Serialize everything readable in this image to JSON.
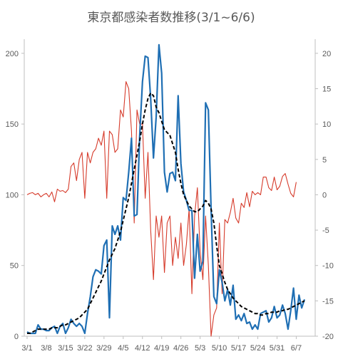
{
  "chart_data": {
    "type": "line",
    "title": "東京都感染者数推移(3/1~6/6)",
    "x_tick_labels": [
      "3/1",
      "3/8",
      "3/15",
      "3/22",
      "3/29",
      "4/5",
      "4/12",
      "4/19",
      "4/26",
      "5/3",
      "5/10",
      "5/17",
      "5/24",
      "5/31",
      "6/7"
    ],
    "y_left_range": [
      0,
      210
    ],
    "y_left_ticks": [
      0,
      50,
      100,
      150,
      200
    ],
    "y_right_range": [
      -20,
      22
    ],
    "y_right_ticks": [
      -20,
      -15,
      -10,
      -5,
      0,
      5,
      10,
      15,
      20
    ],
    "grid": false,
    "legend": "none",
    "series": [
      {
        "axis": "left",
        "color": "#1f6fb4",
        "style": "solid",
        "values": [
          3,
          2,
          2,
          2,
          8,
          5,
          5,
          4,
          4,
          6,
          7,
          2,
          7,
          9,
          2,
          6,
          12,
          9,
          7,
          9,
          7,
          2,
          16,
          28,
          42,
          47,
          46,
          44,
          64,
          68,
          13,
          78,
          72,
          78,
          68,
          98,
          96,
          116,
          140,
          85,
          86,
          142,
          180,
          198,
          197,
          168,
          126,
          155,
          206,
          186,
          116,
          102,
          115,
          116,
          110,
          170,
          122,
          102,
          96,
          89,
          89,
          41,
          72,
          46,
          53,
          165,
          160,
          90,
          28,
          23,
          47,
          38,
          25,
          33,
          22,
          36,
          12,
          15,
          11,
          16,
          9,
          10,
          5,
          8,
          5,
          16,
          17,
          18,
          10,
          13,
          21,
          13,
          15,
          22,
          16,
          5,
          18,
          34,
          12,
          29,
          20,
          26
        ]
      },
      {
        "axis": "right",
        "color": "#d63b2b",
        "style": "solid",
        "values": [
          0,
          0.2,
          0.3,
          0,
          0.2,
          -0.3,
          0,
          0.2,
          -0.3,
          0.4,
          -1,
          0.8,
          0.5,
          0.6,
          0.3,
          0.8,
          4,
          4.5,
          2,
          5,
          6,
          -0.5,
          6,
          4.5,
          6,
          6.5,
          8,
          7,
          9,
          -0.5,
          9,
          8.5,
          6,
          6.5,
          12,
          11,
          16,
          15,
          9,
          -4,
          12,
          10,
          10,
          -0.5,
          6,
          -5,
          -12,
          -3,
          -6,
          -3,
          -11,
          -4,
          -3,
          -10,
          -6,
          -9,
          -4,
          -10,
          -7,
          -2,
          -14,
          -3,
          1,
          -8,
          -12,
          -3,
          -10,
          -20,
          -17,
          -16,
          -4,
          -14,
          -3.5,
          -4,
          -2.5,
          -0.5,
          -3.3,
          -4,
          -1.2,
          -1.8,
          0.3,
          -1.7,
          0.5,
          0,
          0.3,
          0,
          2.5,
          2.5,
          1,
          0.6,
          2.5,
          0.7,
          1.2,
          2.6,
          3,
          1.5,
          0.2,
          -0.3,
          1.8
        ]
      },
      {
        "axis": "left",
        "color": "#000000",
        "style": "dashed",
        "values": [
          2,
          2,
          3,
          4,
          5,
          5,
          5,
          5,
          5,
          6,
          6,
          6,
          7,
          8,
          8,
          9,
          10,
          11,
          12,
          13,
          15,
          17,
          19,
          23,
          27,
          31,
          35,
          39,
          44,
          49,
          54,
          58,
          62,
          68,
          74,
          82,
          90,
          98,
          108,
          118,
          128,
          138,
          150,
          160,
          168,
          172,
          170,
          162,
          158,
          152,
          146,
          144,
          142,
          136,
          130,
          118,
          108,
          100,
          96,
          92,
          90,
          88,
          88,
          90,
          92,
          96,
          94,
          90,
          80,
          64,
          50,
          44,
          38,
          33,
          30,
          27,
          25,
          23,
          21,
          20,
          19,
          18,
          17,
          16,
          16,
          15,
          15,
          16,
          16,
          17,
          17,
          17,
          18,
          18,
          19,
          19,
          20,
          21,
          22,
          23,
          24,
          25
        ]
      }
    ]
  }
}
